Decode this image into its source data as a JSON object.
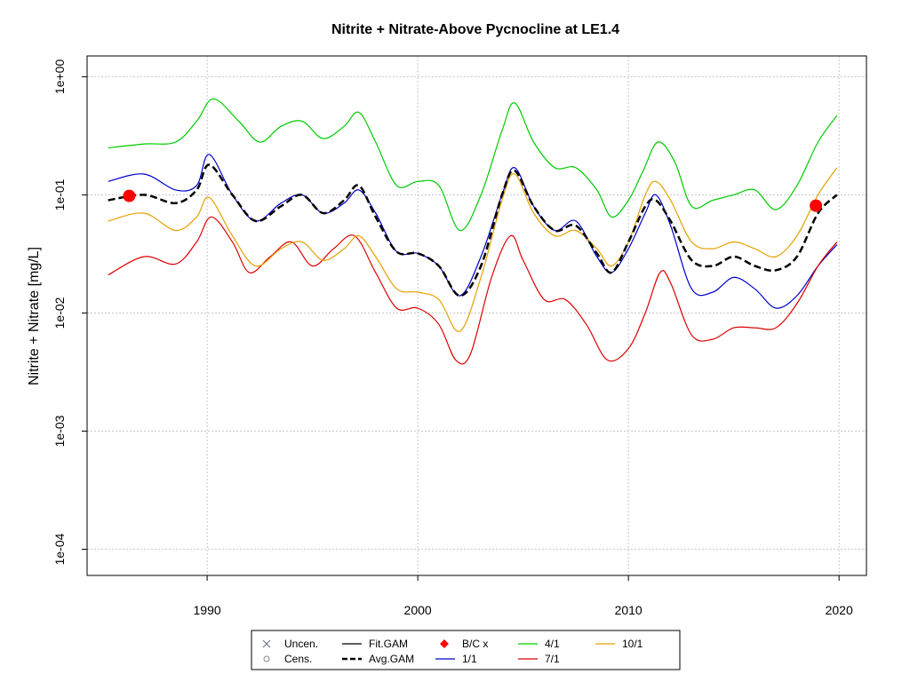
{
  "chart_data": {
    "type": "line",
    "title": "Nitrite + Nitrate-Above Pycnocline at LE1.4",
    "xlabel": "",
    "ylabel": "Nitrite + Nitrate [mg/L]",
    "y_scale": "log10",
    "xlim": [
      1984.3,
      2021.3
    ],
    "ylim": [
      6e-05,
      1.5
    ],
    "x_ticks": [
      1990,
      2000,
      2010,
      2020
    ],
    "x_tick_labels": [
      "1990",
      "2000",
      "2010",
      "2020"
    ],
    "y_ticks": [
      0.0001,
      0.001,
      0.01,
      0.1,
      1
    ],
    "y_tick_labels": [
      "1e-04",
      "1e-03",
      "1e-02",
      "1e-01",
      "1e+00"
    ],
    "grid": true,
    "legend_position": "bottom",
    "legend": [
      {
        "key": "uncen",
        "label": "Uncen.",
        "symbol": "x",
        "color": "#6b7488"
      },
      {
        "key": "fit",
        "label": "Fit.GAM",
        "symbol": "line",
        "color": "#000000"
      },
      {
        "key": "bc",
        "label": "B/C x",
        "symbol": "diamond",
        "color": "#ff0000"
      },
      {
        "key": "d41",
        "label": "4/1",
        "symbol": "line",
        "color": "#00cc00"
      },
      {
        "key": "d101",
        "label": "10/1",
        "symbol": "line",
        "color": "#e6a000"
      },
      {
        "key": "cens",
        "label": "Cens.",
        "symbol": "circle",
        "color": "#888888"
      },
      {
        "key": "avg",
        "label": "Avg.GAM",
        "symbol": "dashed",
        "color": "#000000"
      },
      {
        "key": "d11",
        "label": "1/1",
        "symbol": "line",
        "color": "#0000cc"
      },
      {
        "key": "d71",
        "label": "7/1",
        "symbol": "line",
        "color": "#dd0000"
      }
    ],
    "series": [
      {
        "key": "d41",
        "name": "4/1",
        "color": "#00cc00",
        "x": [
          1985.3,
          1987,
          1988.5,
          1989.5,
          1990.3,
          1991.5,
          1992.5,
          1993.5,
          1994.5,
          1995.5,
          1996.5,
          1997.2,
          1998,
          1999,
          2000,
          2001,
          2002,
          2003,
          2004,
          2004.6,
          2005.5,
          2006.5,
          2007.5,
          2008.5,
          2009.2,
          2010,
          2010.7,
          2011.4,
          2012.2,
          2013,
          2014,
          2015,
          2016,
          2017,
          2018,
          2019,
          2019.9
        ],
        "y": [
          0.25,
          0.27,
          0.28,
          0.42,
          0.65,
          0.42,
          0.28,
          0.38,
          0.42,
          0.3,
          0.38,
          0.5,
          0.28,
          0.12,
          0.13,
          0.12,
          0.05,
          0.1,
          0.35,
          0.6,
          0.28,
          0.17,
          0.17,
          0.11,
          0.065,
          0.09,
          0.16,
          0.28,
          0.19,
          0.08,
          0.09,
          0.1,
          0.11,
          0.075,
          0.12,
          0.28,
          0.47
        ]
      },
      {
        "key": "d11",
        "name": "1/1",
        "color": "#0000cc",
        "x": [
          1985.3,
          1987,
          1988.5,
          1989.5,
          1990.1,
          1991.2,
          1992.3,
          1993.5,
          1994.5,
          1995.5,
          1996.5,
          1997.2,
          1998,
          1999,
          2000,
          2001,
          2002,
          2003,
          2004,
          2004.6,
          2005.5,
          2006.5,
          2007.5,
          2008.5,
          2009.2,
          2010,
          2010.8,
          2011.3,
          2012,
          2013,
          2014,
          2015,
          2016,
          2017,
          2018,
          2019,
          2019.9
        ],
        "y": [
          0.13,
          0.15,
          0.11,
          0.12,
          0.22,
          0.1,
          0.06,
          0.085,
          0.1,
          0.07,
          0.085,
          0.11,
          0.07,
          0.033,
          0.032,
          0.025,
          0.014,
          0.03,
          0.1,
          0.17,
          0.08,
          0.05,
          0.06,
          0.03,
          0.022,
          0.035,
          0.07,
          0.1,
          0.055,
          0.016,
          0.015,
          0.02,
          0.016,
          0.011,
          0.014,
          0.025,
          0.038
        ]
      },
      {
        "key": "d71",
        "name": "7/1",
        "color": "#dd0000",
        "x": [
          1985.3,
          1987,
          1988.5,
          1989.5,
          1990.2,
          1991.2,
          1992,
          1993,
          1994,
          1995,
          1996,
          1997,
          1998,
          1999,
          2000,
          2001,
          2001.8,
          2002.5,
          2003.5,
          2004.4,
          2005,
          2006,
          2007,
          2008,
          2009,
          2010,
          2010.8,
          2011.5,
          2012,
          2013,
          2014,
          2015,
          2016,
          2017,
          2018,
          2019,
          2019.9
        ],
        "y": [
          0.021,
          0.03,
          0.026,
          0.04,
          0.065,
          0.04,
          0.022,
          0.03,
          0.04,
          0.025,
          0.035,
          0.045,
          0.022,
          0.011,
          0.011,
          0.008,
          0.004,
          0.0045,
          0.02,
          0.045,
          0.028,
          0.013,
          0.013,
          0.008,
          0.004,
          0.005,
          0.01,
          0.022,
          0.018,
          0.0065,
          0.006,
          0.0075,
          0.0075,
          0.0075,
          0.012,
          0.025,
          0.04
        ]
      },
      {
        "key": "d101",
        "name": "10/1",
        "color": "#e6a000",
        "x": [
          1985.3,
          1987,
          1988.5,
          1989.5,
          1990.1,
          1991.2,
          1992.3,
          1993.5,
          1994.5,
          1995.5,
          1996.5,
          1997.2,
          1998,
          1999,
          2000,
          2001,
          2002,
          2003,
          2004,
          2004.6,
          2005.5,
          2006.5,
          2007.5,
          2008.5,
          2009.2,
          2010,
          2010.8,
          2011.3,
          2012,
          2013,
          2014,
          2015,
          2016,
          2017,
          2018,
          2019,
          2019.9
        ],
        "y": [
          0.06,
          0.07,
          0.05,
          0.065,
          0.095,
          0.045,
          0.025,
          0.035,
          0.04,
          0.028,
          0.035,
          0.045,
          0.03,
          0.016,
          0.015,
          0.013,
          0.007,
          0.02,
          0.09,
          0.15,
          0.07,
          0.045,
          0.05,
          0.035,
          0.025,
          0.04,
          0.1,
          0.13,
          0.09,
          0.04,
          0.035,
          0.04,
          0.035,
          0.03,
          0.045,
          0.1,
          0.17
        ]
      },
      {
        "key": "avg",
        "name": "Avg.GAM",
        "color": "#000000",
        "dashed": true,
        "x": [
          1985.3,
          1987,
          1988.5,
          1989.5,
          1990.1,
          1991.2,
          1992.3,
          1993.5,
          1994.5,
          1995.5,
          1996.5,
          1997.2,
          1998,
          1999,
          2000,
          2001,
          2002,
          2003,
          2004,
          2004.6,
          2005.5,
          2006.5,
          2007.5,
          2008.5,
          2009.2,
          2010,
          2010.8,
          2011.3,
          2012,
          2013,
          2014,
          2015,
          2016,
          2017,
          2018,
          2019,
          2019.9
        ],
        "y": [
          0.09,
          0.1,
          0.085,
          0.11,
          0.18,
          0.1,
          0.06,
          0.08,
          0.1,
          0.07,
          0.09,
          0.12,
          0.065,
          0.033,
          0.032,
          0.025,
          0.014,
          0.025,
          0.1,
          0.16,
          0.08,
          0.05,
          0.055,
          0.032,
          0.022,
          0.04,
          0.08,
          0.09,
          0.06,
          0.028,
          0.025,
          0.03,
          0.025,
          0.023,
          0.03,
          0.07,
          0.1
        ]
      }
    ],
    "bc_points": [
      {
        "x": 1986.3,
        "y": 0.098
      },
      {
        "x": 2018.9,
        "y": 0.081
      }
    ]
  }
}
